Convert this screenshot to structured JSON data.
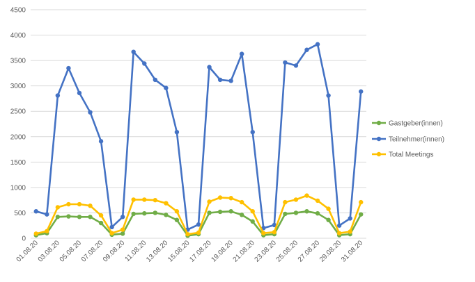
{
  "chart_data": {
    "type": "line",
    "categories": [
      "01.08.20",
      "02.08.20",
      "03.08.20",
      "04.08.20",
      "05.08.20",
      "06.08.20",
      "07.08.20",
      "08.08.20",
      "09.08.20",
      "10.08.20",
      "11.08.20",
      "12.08.20",
      "13.08.20",
      "14.08.20",
      "15.08.20",
      "16.08.20",
      "17.08.20",
      "18.08.20",
      "19.08.20",
      "20.08.20",
      "21.08.20",
      "22.08.20",
      "23.08.20",
      "24.08.20",
      "25.08.20",
      "26.08.20",
      "27.08.20",
      "28.08.20",
      "29.08.20",
      "30.08.20",
      "31.08.20"
    ],
    "tick_labels": [
      "01.08.20",
      "03.08.20",
      "05.08.20",
      "07.08.20",
      "09.08.20",
      "11.08.20",
      "13.08.20",
      "15.08.20",
      "17.08.20",
      "19.08.20",
      "21.08.20",
      "23.08.20",
      "25.08.20",
      "27.08.20",
      "29.08.20",
      "31.08.20"
    ],
    "yticks": [
      "0",
      "500",
      "1000",
      "1500",
      "2000",
      "2500",
      "3000",
      "3500",
      "4000",
      "4500"
    ],
    "ylim": [
      0,
      4500
    ],
    "grid": "horizontal",
    "legend_position": "right",
    "title": "",
    "xlabel": "",
    "ylabel": "",
    "series": [
      {
        "name": "Gastgeber(innen)",
        "color": "#70ad47",
        "values": [
          60,
          100,
          420,
          430,
          420,
          420,
          300,
          70,
          90,
          480,
          490,
          500,
          460,
          360,
          50,
          80,
          500,
          520,
          530,
          460,
          330,
          60,
          80,
          480,
          500,
          530,
          490,
          360,
          60,
          80,
          470
        ]
      },
      {
        "name": "Teilnehmer(innen)",
        "color": "#4472c4",
        "values": [
          530,
          470,
          2810,
          3350,
          2860,
          2480,
          1910,
          220,
          420,
          3670,
          3440,
          3120,
          2960,
          2090,
          170,
          270,
          3370,
          3120,
          3100,
          3630,
          2090,
          200,
          260,
          3460,
          3400,
          3710,
          3820,
          2810,
          250,
          390,
          2890
        ]
      },
      {
        "name": "Total Meetings",
        "color": "#ffc000",
        "values": [
          90,
          140,
          610,
          670,
          670,
          640,
          450,
          100,
          170,
          760,
          760,
          750,
          690,
          530,
          80,
          110,
          720,
          800,
          790,
          710,
          530,
          100,
          120,
          710,
          760,
          840,
          740,
          580,
          100,
          130,
          710
        ]
      }
    ]
  }
}
